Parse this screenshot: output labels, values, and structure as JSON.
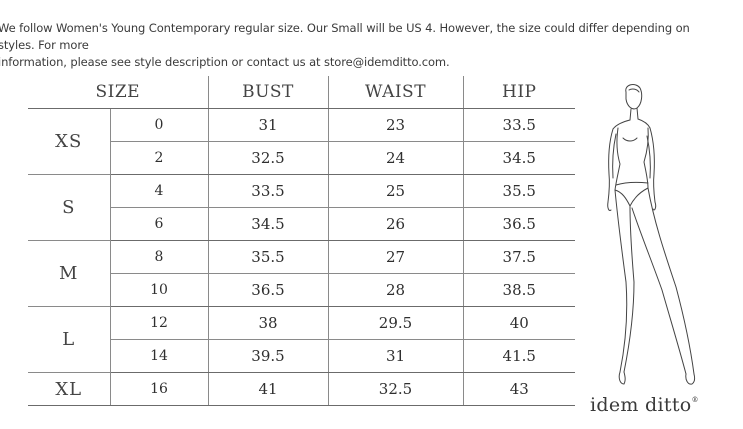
{
  "intro": {
    "line1": "We follow Women's Young Contemporary regular size. Our Small will be US 4. However, the size could differ depending on styles. For more",
    "line2": "information, please see style description or contact us at store@idemditto.com."
  },
  "table": {
    "headers": [
      "SIZE",
      "BUST",
      "WAIST",
      "HIP"
    ],
    "groups": [
      {
        "label": "XS",
        "rows": [
          {
            "us": "0",
            "bust": "31",
            "waist": "23",
            "hip": "33.5"
          },
          {
            "us": "2",
            "bust": "32.5",
            "waist": "24",
            "hip": "34.5"
          }
        ]
      },
      {
        "label": "S",
        "rows": [
          {
            "us": "4",
            "bust": "33.5",
            "waist": "25",
            "hip": "35.5"
          },
          {
            "us": "6",
            "bust": "34.5",
            "waist": "26",
            "hip": "36.5"
          }
        ]
      },
      {
        "label": "M",
        "rows": [
          {
            "us": "8",
            "bust": "35.5",
            "waist": "27",
            "hip": "37.5"
          },
          {
            "us": "10",
            "bust": "36.5",
            "waist": "28",
            "hip": "38.5"
          }
        ]
      },
      {
        "label": "L",
        "rows": [
          {
            "us": "12",
            "bust": "38",
            "waist": "29.5",
            "hip": "40"
          },
          {
            "us": "14",
            "bust": "39.5",
            "waist": "31",
            "hip": "41.5"
          }
        ]
      },
      {
        "label": "XL",
        "rows": [
          {
            "us": "16",
            "bust": "41",
            "waist": "32.5",
            "hip": "43"
          }
        ]
      }
    ]
  },
  "brand": {
    "name": "idem ditto",
    "mark": "®"
  }
}
